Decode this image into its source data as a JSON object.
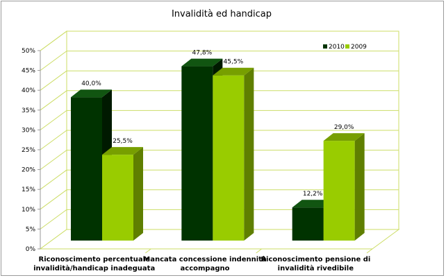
{
  "chart_data": {
    "type": "bar",
    "title": "Invalidità ed handicap",
    "categories": [
      [
        "Riconoscimento percentuale",
        "invalidità/handicap inadeguata"
      ],
      [
        "Mancata concessione indennità",
        "accompagno"
      ],
      [
        "Riconoscimento pensione di",
        "invalidità rivedibile"
      ]
    ],
    "series": [
      {
        "name": "2010",
        "values": [
          40.0,
          47.8,
          12.2
        ],
        "labels": [
          "40,0%",
          "47,8%",
          "12,2%"
        ],
        "color": "#003300"
      },
      {
        "name": "2009",
        "values": [
          25.5,
          45.5,
          29.0
        ],
        "labels": [
          "25,5%",
          "45,5%",
          "29,0%"
        ],
        "color": "#99cc00"
      }
    ],
    "ylim": [
      0,
      50
    ],
    "yticks": [
      "0%",
      "5%",
      "10%",
      "15%",
      "20%",
      "25%",
      "30%",
      "35%",
      "40%",
      "45%",
      "50%"
    ],
    "grid": true,
    "legend": "top-right",
    "colors": {
      "grid": "#ccdd66",
      "dark_front": "#003300",
      "dark_side": "#001a00",
      "dark_top": "#115511",
      "light_front": "#99cc00",
      "light_side": "#5f7f00",
      "light_top": "#779f00"
    }
  }
}
